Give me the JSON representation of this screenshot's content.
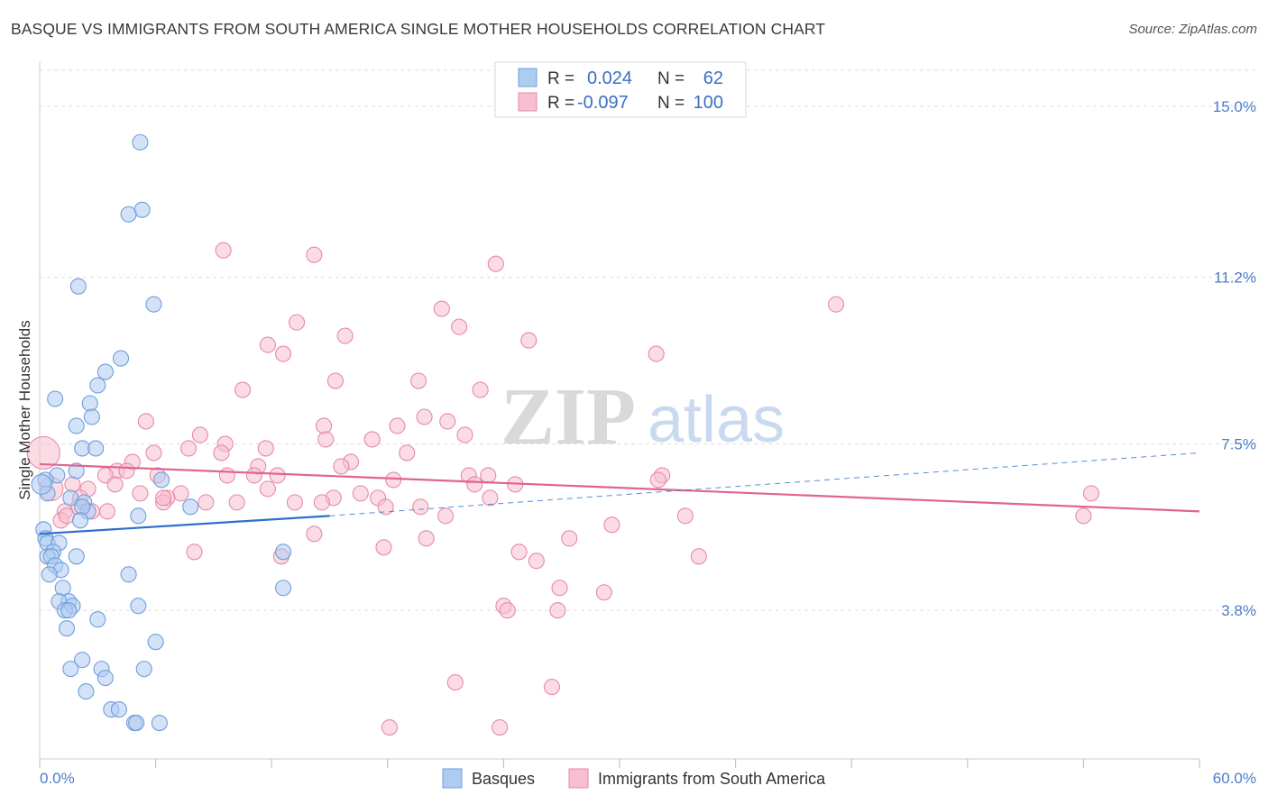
{
  "title": "BASQUE VS IMMIGRANTS FROM SOUTH AMERICA SINGLE MOTHER HOUSEHOLDS CORRELATION CHART",
  "source": "Source: ZipAtlas.com",
  "watermark": {
    "zip": "ZIP",
    "atlas": "atlas"
  },
  "colors": {
    "blue_fill": "#aecbf0",
    "blue_stroke": "#6e9fdc",
    "blue_line": "#2b6fcc",
    "pink_fill": "#f7bfd0",
    "pink_stroke": "#e58aa8",
    "pink_line": "#e0648f",
    "grid": "#dddddd",
    "axis_text": "#4a7cc9"
  },
  "legend": {
    "rows": [
      {
        "r_label": "R =",
        "r_value": "0.024",
        "n_label": "N =",
        "n_value": "62",
        "series": "blue"
      },
      {
        "r_label": "R =",
        "r_value": "-0.097",
        "n_label": "N =",
        "n_value": "100",
        "series": "pink"
      }
    ]
  },
  "chart_data": {
    "type": "scatter",
    "title": "BASQUE VS IMMIGRANTS FROM SOUTH AMERICA SINGLE MOTHER HOUSEHOLDS CORRELATION CHART",
    "xlabel": "",
    "ylabel": "Single Mother Households",
    "xlim": [
      0,
      60
    ],
    "ylim": [
      0.5,
      16
    ],
    "x_tick_labels": [
      "0.0%",
      "60.0%"
    ],
    "y_ticks": [
      3.8,
      7.5,
      11.2,
      15.0
    ],
    "y_tick_labels": [
      "3.8%",
      "7.5%",
      "11.2%",
      "15.0%"
    ],
    "legend_position": "top-center",
    "series": [
      {
        "name": "Basques",
        "color": "blue",
        "r": 0.024,
        "n": 62,
        "trend": {
          "x0": 0,
          "y0": 5.5,
          "x1": 15,
          "y1": 5.9,
          "dash_x1": 60,
          "dash_y1": 7.3
        },
        "points": [
          [
            5.2,
            14.2
          ],
          [
            5.3,
            12.7
          ],
          [
            4.6,
            12.6
          ],
          [
            2.0,
            11.0
          ],
          [
            5.9,
            10.6
          ],
          [
            4.2,
            9.4
          ],
          [
            3.4,
            9.1
          ],
          [
            3.0,
            8.8
          ],
          [
            0.8,
            8.5
          ],
          [
            2.6,
            8.4
          ],
          [
            2.7,
            8.1
          ],
          [
            1.9,
            7.9
          ],
          [
            2.2,
            7.4
          ],
          [
            2.9,
            7.4
          ],
          [
            1.9,
            6.9
          ],
          [
            0.9,
            6.8
          ],
          [
            0.3,
            6.7
          ],
          [
            0.4,
            6.4
          ],
          [
            6.3,
            6.7
          ],
          [
            1.6,
            6.3
          ],
          [
            2.3,
            6.2
          ],
          [
            2.5,
            6.0
          ],
          [
            2.2,
            6.1
          ],
          [
            7.8,
            6.1
          ],
          [
            5.1,
            5.9
          ],
          [
            2.1,
            5.8
          ],
          [
            0.2,
            5.6
          ],
          [
            0.3,
            5.4
          ],
          [
            0.4,
            5.3
          ],
          [
            1.0,
            5.3
          ],
          [
            0.7,
            5.1
          ],
          [
            12.6,
            5.1
          ],
          [
            0.4,
            5.0
          ],
          [
            0.6,
            5.0
          ],
          [
            1.9,
            5.0
          ],
          [
            0.8,
            4.8
          ],
          [
            1.1,
            4.7
          ],
          [
            0.5,
            4.6
          ],
          [
            4.6,
            4.6
          ],
          [
            1.2,
            4.3
          ],
          [
            12.6,
            4.3
          ],
          [
            1.5,
            4.0
          ],
          [
            1.0,
            4.0
          ],
          [
            1.7,
            3.9
          ],
          [
            5.1,
            3.9
          ],
          [
            1.3,
            3.8
          ],
          [
            1.5,
            3.8
          ],
          [
            3.0,
            3.6
          ],
          [
            1.4,
            3.4
          ],
          [
            6.0,
            3.1
          ],
          [
            2.2,
            2.7
          ],
          [
            1.6,
            2.5
          ],
          [
            3.2,
            2.5
          ],
          [
            5.4,
            2.5
          ],
          [
            3.4,
            2.3
          ],
          [
            2.4,
            2.0
          ],
          [
            3.7,
            1.6
          ],
          [
            4.1,
            1.6
          ],
          [
            4.9,
            1.3
          ],
          [
            5.0,
            1.3
          ],
          [
            6.2,
            1.3
          ],
          [
            0.1,
            6.6
          ]
        ]
      },
      {
        "name": "Immigrants from South America",
        "color": "pink",
        "r": -0.097,
        "n": 100,
        "trend": {
          "x0": 0,
          "y0": 7.05,
          "x1": 60,
          "y1": 6.0
        },
        "points": [
          [
            9.5,
            11.8
          ],
          [
            14.2,
            11.7
          ],
          [
            23.6,
            11.5
          ],
          [
            41.2,
            10.6
          ],
          [
            20.8,
            10.5
          ],
          [
            13.3,
            10.2
          ],
          [
            21.7,
            10.1
          ],
          [
            15.8,
            9.9
          ],
          [
            25.3,
            9.8
          ],
          [
            11.8,
            9.7
          ],
          [
            12.6,
            9.5
          ],
          [
            31.9,
            9.5
          ],
          [
            15.3,
            8.9
          ],
          [
            19.6,
            8.9
          ],
          [
            10.5,
            8.7
          ],
          [
            22.8,
            8.7
          ],
          [
            19.9,
            8.1
          ],
          [
            21.1,
            8.0
          ],
          [
            5.5,
            8.0
          ],
          [
            14.7,
            7.9
          ],
          [
            18.5,
            7.9
          ],
          [
            8.3,
            7.7
          ],
          [
            14.8,
            7.6
          ],
          [
            9.6,
            7.5
          ],
          [
            17.2,
            7.6
          ],
          [
            22.0,
            7.7
          ],
          [
            7.7,
            7.4
          ],
          [
            9.4,
            7.3
          ],
          [
            11.7,
            7.4
          ],
          [
            5.9,
            7.3
          ],
          [
            19.0,
            7.3
          ],
          [
            16.1,
            7.1
          ],
          [
            4.8,
            7.1
          ],
          [
            15.6,
            7.0
          ],
          [
            11.3,
            7.0
          ],
          [
            4.0,
            6.9
          ],
          [
            4.5,
            6.9
          ],
          [
            6.1,
            6.8
          ],
          [
            3.4,
            6.8
          ],
          [
            9.7,
            6.8
          ],
          [
            11.1,
            6.8
          ],
          [
            12.3,
            6.8
          ],
          [
            18.3,
            6.7
          ],
          [
            22.2,
            6.8
          ],
          [
            23.2,
            6.8
          ],
          [
            32.2,
            6.8
          ],
          [
            3.9,
            6.6
          ],
          [
            1.7,
            6.6
          ],
          [
            24.6,
            6.6
          ],
          [
            22.5,
            6.6
          ],
          [
            32.0,
            6.7
          ],
          [
            2.5,
            6.5
          ],
          [
            5.2,
            6.4
          ],
          [
            7.3,
            6.4
          ],
          [
            11.8,
            6.5
          ],
          [
            16.6,
            6.4
          ],
          [
            17.5,
            6.3
          ],
          [
            6.6,
            6.3
          ],
          [
            8.6,
            6.2
          ],
          [
            10.2,
            6.2
          ],
          [
            13.2,
            6.2
          ],
          [
            15.2,
            6.3
          ],
          [
            14.6,
            6.2
          ],
          [
            6.4,
            6.2
          ],
          [
            19.7,
            6.1
          ],
          [
            23.3,
            6.3
          ],
          [
            17.9,
            6.1
          ],
          [
            2.0,
            6.1
          ],
          [
            3.5,
            6.0
          ],
          [
            1.3,
            6.0
          ],
          [
            2.7,
            6.0
          ],
          [
            1.1,
            5.8
          ],
          [
            21.0,
            5.9
          ],
          [
            33.4,
            5.9
          ],
          [
            54.4,
            6.4
          ],
          [
            54.0,
            5.9
          ],
          [
            29.6,
            5.7
          ],
          [
            14.2,
            5.5
          ],
          [
            20.0,
            5.4
          ],
          [
            27.4,
            5.4
          ],
          [
            8.0,
            5.1
          ],
          [
            17.8,
            5.2
          ],
          [
            24.8,
            5.1
          ],
          [
            25.7,
            4.9
          ],
          [
            34.1,
            5.0
          ],
          [
            12.5,
            5.0
          ],
          [
            26.9,
            4.3
          ],
          [
            29.2,
            4.2
          ],
          [
            24.0,
            3.9
          ],
          [
            24.2,
            3.8
          ],
          [
            26.8,
            3.8
          ],
          [
            21.5,
            2.2
          ],
          [
            26.5,
            2.1
          ],
          [
            18.1,
            1.2
          ],
          [
            23.8,
            1.2
          ],
          [
            0.2,
            7.3
          ],
          [
            6.4,
            6.3
          ],
          [
            0.6,
            6.5
          ],
          [
            1.4,
            5.9
          ],
          [
            2.1,
            6.3
          ]
        ]
      }
    ]
  },
  "bottom_legend": [
    {
      "label": "Basques",
      "series": "blue"
    },
    {
      "label": "Immigrants from South America",
      "series": "pink"
    }
  ]
}
